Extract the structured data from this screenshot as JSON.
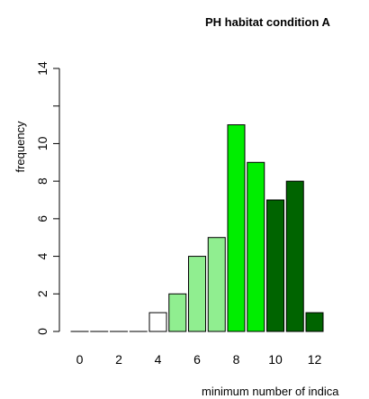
{
  "chart_data": {
    "type": "bar",
    "title": "PH habitat condition A",
    "xlabel": "minimum number of indica",
    "ylabel": "frequency",
    "categories": [
      "0",
      "1",
      "2",
      "3",
      "4",
      "5",
      "6",
      "7",
      "8",
      "9",
      "10",
      "11",
      "12"
    ],
    "values": [
      0,
      0,
      0,
      0,
      1,
      2,
      4,
      5,
      11,
      9,
      7,
      8,
      1
    ],
    "colors": [
      "#ffffff",
      "#ffffff",
      "#ffffff",
      "#ffffff",
      "#ffffff",
      "#90ee90",
      "#90ee90",
      "#90ee90",
      "#00ee00",
      "#00ee00",
      "#006400",
      "#006400",
      "#006400"
    ],
    "x_ticks": [
      "0",
      "2",
      "4",
      "6",
      "8",
      "10",
      "12"
    ],
    "y_ticks": [
      "0",
      "2",
      "4",
      "6",
      "8",
      "10",
      "",
      "14"
    ],
    "ylim": [
      0,
      14
    ],
    "grid": false
  }
}
